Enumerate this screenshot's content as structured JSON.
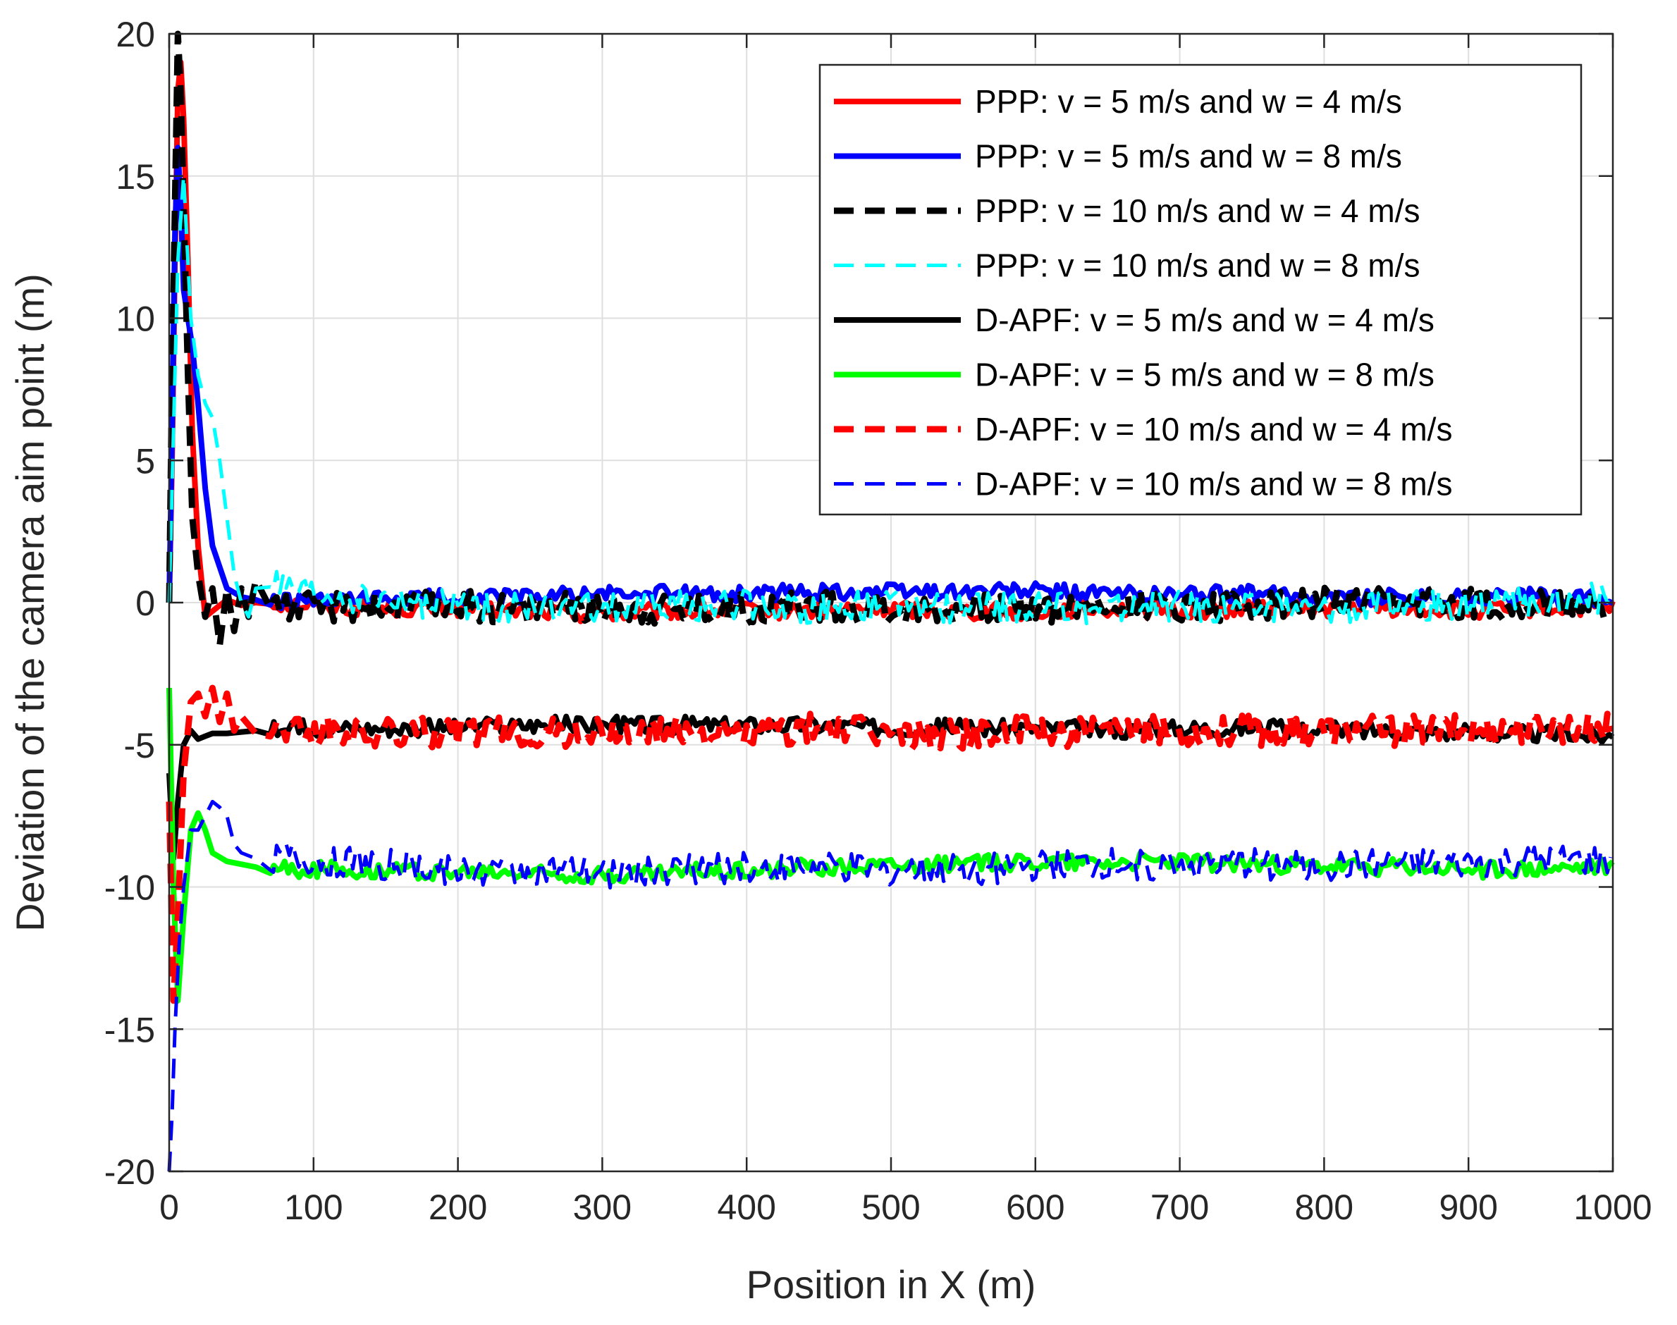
{
  "chart_data": {
    "type": "line",
    "title": "",
    "xlabel": "Position in X (m)",
    "ylabel": "Deviation of the camera aim point (m)",
    "xlim": [
      0,
      1000
    ],
    "ylim": [
      -20,
      20
    ],
    "xticks": [
      0,
      100,
      200,
      300,
      400,
      500,
      600,
      700,
      800,
      900,
      1000
    ],
    "yticks": [
      -20,
      -15,
      -10,
      -5,
      0,
      5,
      10,
      15,
      20
    ],
    "xtick_labels": [
      "0",
      "100",
      "200",
      "300",
      "400",
      "500",
      "600",
      "700",
      "800",
      "900",
      "1000"
    ],
    "ytick_labels": [
      "-20",
      "-15",
      "-10",
      "-5",
      "0",
      "5",
      "10",
      "15",
      "20"
    ],
    "grid": true,
    "legend_position": "top-right",
    "series": [
      {
        "name": "PPP: v = 5 m/s and w = 4 m/s",
        "color": "#ff0000",
        "style": "solid",
        "width": 8,
        "x": [
          0,
          2,
          4,
          6,
          8,
          10,
          13,
          16,
          20,
          25,
          30,
          40,
          50,
          60,
          70,
          100,
          150,
          200,
          250,
          300,
          350,
          400,
          450,
          500,
          550,
          600,
          650,
          700,
          750,
          800,
          850,
          900,
          950,
          1000
        ],
        "y": [
          0,
          5,
          12,
          18,
          19,
          17,
          12,
          6,
          2,
          -0.5,
          -0.3,
          0.1,
          -0.1,
          0,
          0,
          -0.1,
          -0.2,
          -0.2,
          -0.3,
          -0.4,
          -0.3,
          -0.3,
          -0.3,
          -0.2,
          -0.3,
          -0.3,
          -0.2,
          -0.3,
          -0.2,
          -0.2,
          -0.2,
          -0.3,
          -0.2,
          -0.2
        ]
      },
      {
        "name": "PPP: v = 5 m/s and w = 8 m/s",
        "color": "#0000ff",
        "style": "solid",
        "width": 8,
        "x": [
          0,
          2,
          4,
          6,
          8,
          10,
          13,
          16,
          20,
          25,
          30,
          40,
          50,
          60,
          70,
          100,
          150,
          200,
          250,
          300,
          350,
          400,
          450,
          500,
          550,
          600,
          650,
          700,
          750,
          800,
          850,
          900,
          950,
          1000
        ],
        "y": [
          0,
          6,
          13,
          16,
          14,
          11,
          10,
          9,
          7,
          4,
          2,
          0.5,
          0.2,
          0.1,
          0,
          0,
          0.1,
          0.2,
          0.2,
          0.3,
          0.3,
          0.3,
          0.4,
          0.4,
          0.4,
          0.4,
          0.3,
          0.3,
          0.3,
          0.2,
          0.2,
          0.2,
          0.2,
          0.1
        ]
      },
      {
        "name": "PPP: v = 10 m/s and w = 4 m/s",
        "color": "#000000",
        "style": "dashed",
        "width": 9,
        "x": [
          0,
          2,
          4,
          6,
          8,
          10,
          13,
          16,
          20,
          25,
          30,
          35,
          40,
          45,
          50,
          55,
          60,
          70,
          100,
          150,
          200,
          250,
          300,
          350,
          400,
          450,
          500,
          550,
          600,
          650,
          700,
          750,
          800,
          850,
          900,
          950,
          1000
        ],
        "y": [
          0,
          8,
          14,
          20,
          18,
          14,
          8,
          3,
          1,
          -0.5,
          0.5,
          -1.5,
          0.5,
          -1,
          0.5,
          -0.5,
          0.8,
          0,
          -0.2,
          -0.1,
          -0.1,
          -0.2,
          -0.2,
          -0.2,
          -0.2,
          -0.1,
          -0.2,
          -0.2,
          -0.2,
          -0.1,
          -0.1,
          -0.1,
          0,
          0,
          0,
          -0.1,
          -0.1
        ]
      },
      {
        "name": "PPP: v = 10 m/s and w = 8 m/s",
        "color": "#00ffff",
        "style": "dashed",
        "width": 5,
        "x": [
          0,
          3,
          6,
          10,
          15,
          20,
          25,
          30,
          35,
          40,
          45,
          50,
          55,
          60,
          70,
          80,
          100,
          150,
          200,
          250,
          300,
          350,
          400,
          450,
          500,
          550,
          600,
          650,
          700,
          750,
          800,
          850,
          900,
          950,
          1000
        ],
        "y": [
          0,
          6,
          12,
          15,
          10,
          8,
          7,
          6.5,
          5,
          3,
          1,
          0,
          -0.5,
          0.5,
          0.8,
          0.4,
          0.2,
          0,
          -0.1,
          -0.2,
          -0.2,
          -0.1,
          -0.1,
          -0.2,
          -0.1,
          -0.2,
          -0.2,
          -0.2,
          -0.1,
          -0.2,
          -0.2,
          -0.1,
          -0.1,
          0,
          0.2
        ]
      },
      {
        "name": "D-APF: v = 5 m/s and w = 4 m/s",
        "color": "#000000",
        "style": "solid",
        "width": 8,
        "x": [
          0,
          3,
          6,
          10,
          15,
          20,
          25,
          30,
          40,
          60,
          100,
          150,
          200,
          250,
          300,
          350,
          400,
          450,
          500,
          550,
          600,
          650,
          700,
          750,
          800,
          850,
          900,
          950,
          1000
        ],
        "y": [
          -6,
          -9,
          -7,
          -5,
          -4.5,
          -4.8,
          -4.7,
          -4.6,
          -4.6,
          -4.5,
          -4.4,
          -4.4,
          -4.4,
          -4.3,
          -4.3,
          -4.3,
          -4.3,
          -4.3,
          -4.4,
          -4.4,
          -4.4,
          -4.5,
          -4.4,
          -4.4,
          -4.5,
          -4.5,
          -4.6,
          -4.6,
          -4.7
        ]
      },
      {
        "name": "D-APF: v = 5 m/s and w = 8 m/s",
        "color": "#00ff00",
        "style": "solid",
        "width": 8,
        "x": [
          0,
          3,
          6,
          10,
          15,
          20,
          25,
          30,
          40,
          60,
          100,
          150,
          200,
          250,
          300,
          350,
          400,
          450,
          500,
          550,
          600,
          650,
          700,
          750,
          800,
          850,
          900,
          950,
          1000
        ],
        "y": [
          -3,
          -10,
          -14,
          -11,
          -8,
          -7.4,
          -8,
          -8.8,
          -9.1,
          -9.3,
          -9.4,
          -9.4,
          -9.5,
          -9.5,
          -9.6,
          -9.5,
          -9.4,
          -9.3,
          -9.2,
          -9.2,
          -9.1,
          -9.1,
          -9.1,
          -9.2,
          -9.3,
          -9.3,
          -9.4,
          -9.4,
          -9.3
        ]
      },
      {
        "name": "D-APF: v = 10 m/s and w = 4 m/s",
        "color": "#ff0000",
        "style": "dashed",
        "width": 9,
        "x": [
          0,
          3,
          6,
          10,
          15,
          20,
          25,
          30,
          35,
          40,
          45,
          50,
          55,
          60,
          70,
          100,
          150,
          200,
          250,
          300,
          350,
          400,
          450,
          500,
          550,
          600,
          650,
          700,
          750,
          800,
          850,
          900,
          950,
          1000
        ],
        "y": [
          -7,
          -14,
          -11,
          -6,
          -3.5,
          -3.2,
          -4,
          -3,
          -4.2,
          -3.2,
          -4.5,
          -4,
          -4.3,
          -4.6,
          -4.3,
          -4.5,
          -4.6,
          -4.5,
          -4.6,
          -4.6,
          -4.5,
          -4.6,
          -4.4,
          -4.6,
          -4.6,
          -4.5,
          -4.6,
          -4.5,
          -4.5,
          -4.5,
          -4.5,
          -4.5,
          -4.4,
          -4.4
        ]
      },
      {
        "name": "D-APF: v = 10 m/s and w = 8 m/s",
        "color": "#0000ff",
        "style": "dashed",
        "width": 5,
        "x": [
          0,
          2,
          4,
          7,
          10,
          15,
          20,
          25,
          30,
          35,
          40,
          45,
          50,
          60,
          80,
          100,
          150,
          200,
          250,
          300,
          350,
          400,
          450,
          500,
          550,
          600,
          650,
          700,
          750,
          800,
          850,
          900,
          950,
          1000
        ],
        "y": [
          -20,
          -18,
          -15,
          -12,
          -10,
          -8,
          -8,
          -7.5,
          -7,
          -7.2,
          -7.5,
          -8.5,
          -8.8,
          -9,
          -8.9,
          -9.1,
          -9.2,
          -9.4,
          -9.4,
          -9.5,
          -9.4,
          -9.3,
          -9.3,
          -9.4,
          -9.4,
          -9.3,
          -9.2,
          -9.2,
          -9.2,
          -9.3,
          -9.2,
          -9.2,
          -9.1,
          -9.1
        ]
      }
    ]
  }
}
